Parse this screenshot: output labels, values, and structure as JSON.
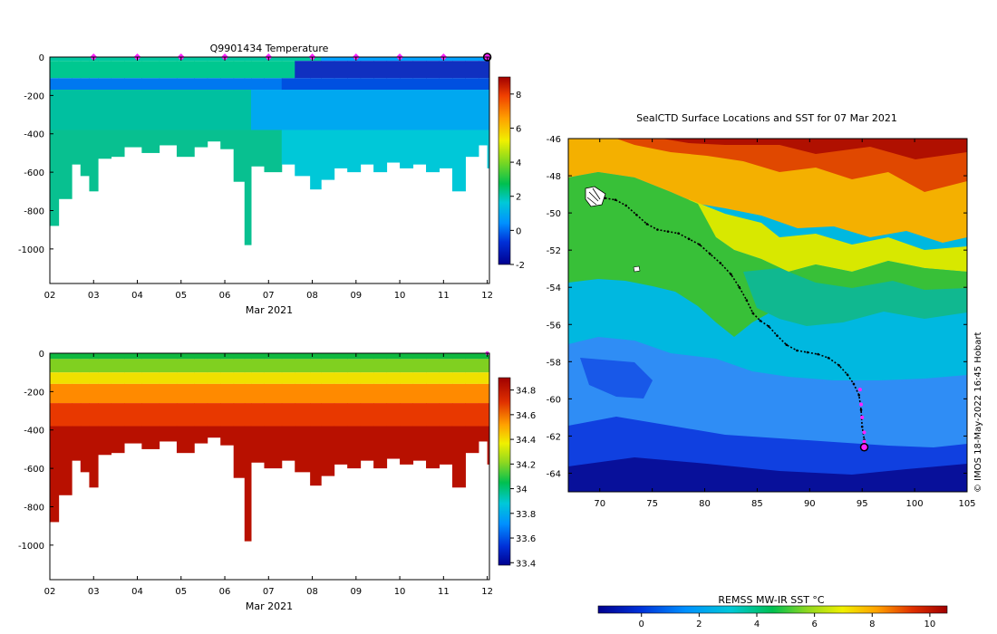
{
  "chart_data": [
    {
      "type": "heatmap",
      "title": "Q9901434  Temperature",
      "xlabel": "Mar 2021",
      "ylabel": "",
      "xlim": [
        2,
        12.05
      ],
      "ylim": [
        -1180,
        0
      ],
      "xticks": [
        2,
        3,
        4,
        5,
        6,
        7,
        8,
        9,
        10,
        11,
        12
      ],
      "xticklabels": [
        "02",
        "03",
        "04",
        "05",
        "06",
        "07",
        "08",
        "09",
        "10",
        "11",
        "12"
      ],
      "yticks": [
        0,
        -200,
        -400,
        -600,
        -800,
        -1000
      ],
      "colorbar": {
        "min": -2,
        "max": 9,
        "ticks": [
          -2,
          0,
          2,
          4,
          6,
          8
        ]
      },
      "surface_markers_day": [
        3,
        4,
        5,
        6,
        7,
        8,
        9,
        10,
        11
      ],
      "latest_marker_day": 12,
      "profiles": [
        {
          "day": 2.0,
          "depth": 880
        },
        {
          "day": 2.2,
          "depth": 740
        },
        {
          "day": 2.5,
          "depth": 560
        },
        {
          "day": 2.7,
          "depth": 620
        },
        {
          "day": 2.9,
          "depth": 700
        },
        {
          "day": 3.1,
          "depth": 530
        },
        {
          "day": 3.4,
          "depth": 520
        },
        {
          "day": 3.7,
          "depth": 470
        },
        {
          "day": 4.1,
          "depth": 500
        },
        {
          "day": 4.5,
          "depth": 460
        },
        {
          "day": 4.9,
          "depth": 520
        },
        {
          "day": 5.3,
          "depth": 470
        },
        {
          "day": 5.6,
          "depth": 440
        },
        {
          "day": 5.9,
          "depth": 480
        },
        {
          "day": 6.2,
          "depth": 650
        },
        {
          "day": 6.45,
          "depth": 980
        },
        {
          "day": 6.6,
          "depth": 570
        },
        {
          "day": 6.9,
          "depth": 600
        },
        {
          "day": 7.3,
          "depth": 560
        },
        {
          "day": 7.6,
          "depth": 620
        },
        {
          "day": 7.95,
          "depth": 690
        },
        {
          "day": 8.2,
          "depth": 640
        },
        {
          "day": 8.5,
          "depth": 580
        },
        {
          "day": 8.8,
          "depth": 600
        },
        {
          "day": 9.1,
          "depth": 560
        },
        {
          "day": 9.4,
          "depth": 600
        },
        {
          "day": 9.7,
          "depth": 550
        },
        {
          "day": 10.0,
          "depth": 580
        },
        {
          "day": 10.3,
          "depth": 560
        },
        {
          "day": 10.6,
          "depth": 600
        },
        {
          "day": 10.9,
          "depth": 580
        },
        {
          "day": 11.2,
          "depth": 700
        },
        {
          "day": 11.5,
          "depth": 520
        },
        {
          "day": 11.8,
          "depth": 460
        },
        {
          "day": 12.0,
          "depth": 580
        }
      ]
    },
    {
      "type": "heatmap",
      "title": "",
      "xlabel": "Mar 2021",
      "ylabel": "",
      "xlim": [
        2,
        12.05
      ],
      "ylim": [
        -1180,
        0
      ],
      "xticks": [
        2,
        3,
        4,
        5,
        6,
        7,
        8,
        9,
        10,
        11,
        12
      ],
      "xticklabels": [
        "02",
        "03",
        "04",
        "05",
        "06",
        "07",
        "08",
        "09",
        "10",
        "11",
        "12"
      ],
      "yticks": [
        0,
        -200,
        -400,
        -600,
        -800,
        -1000
      ],
      "colorbar": {
        "min": 33.38,
        "max": 34.9,
        "ticks": [
          33.4,
          33.6,
          33.8,
          34,
          34.2,
          34.4,
          34.6,
          34.8
        ],
        "ticklabels": [
          "33.4",
          "33.6",
          "33.8",
          "34",
          "34.2",
          "34.4",
          "34.6",
          "34.8"
        ]
      },
      "latest_marker_day": 12
    },
    {
      "type": "heatmap",
      "title": "SealCTD Surface Locations and SST for 07 Mar 2021",
      "xlim": [
        67,
        105
      ],
      "ylim": [
        -65,
        -46
      ],
      "xticks": [
        70,
        75,
        80,
        85,
        90,
        95,
        100,
        105
      ],
      "yticks": [
        -46,
        -48,
        -50,
        -52,
        -54,
        -56,
        -58,
        -60,
        -62,
        -64
      ],
      "colorbar_label": "REMSS MW-IR SST °C",
      "colorbar": {
        "min": -1.5,
        "max": 10.6,
        "ticks": [
          0,
          2,
          4,
          6,
          8,
          10
        ]
      },
      "track": [
        [
          70.5,
          -49.2
        ],
        [
          71.5,
          -49.3
        ],
        [
          72.5,
          -49.6
        ],
        [
          73.5,
          -50.1
        ],
        [
          74.5,
          -50.6
        ],
        [
          75.5,
          -50.9
        ],
        [
          76.5,
          -51.0
        ],
        [
          77.5,
          -51.1
        ],
        [
          78.5,
          -51.4
        ],
        [
          79.5,
          -51.7
        ],
        [
          80.5,
          -52.2
        ],
        [
          81.5,
          -52.7
        ],
        [
          82.5,
          -53.3
        ],
        [
          83.3,
          -54.0
        ],
        [
          84.0,
          -54.7
        ],
        [
          84.6,
          -55.4
        ],
        [
          85.3,
          -55.8
        ],
        [
          86.1,
          -56.1
        ],
        [
          86.9,
          -56.6
        ],
        [
          87.8,
          -57.1
        ],
        [
          88.8,
          -57.4
        ],
        [
          89.8,
          -57.5
        ],
        [
          90.8,
          -57.6
        ],
        [
          91.8,
          -57.8
        ],
        [
          92.8,
          -58.2
        ],
        [
          93.6,
          -58.7
        ],
        [
          94.2,
          -59.2
        ],
        [
          94.7,
          -59.8
        ],
        [
          94.9,
          -60.6
        ],
        [
          95.0,
          -61.5
        ],
        [
          95.2,
          -62.2
        ],
        [
          95.2,
          -62.6
        ]
      ],
      "recent_track": [
        [
          94.8,
          -59.5
        ],
        [
          94.9,
          -60.3
        ],
        [
          95.0,
          -61.0
        ],
        [
          95.2,
          -61.8
        ],
        [
          95.2,
          -62.3
        ]
      ],
      "latest_position": [
        95.2,
        -62.6
      ]
    }
  ],
  "credit": "© IMOS 18-May-2022 16:45 Hobart"
}
